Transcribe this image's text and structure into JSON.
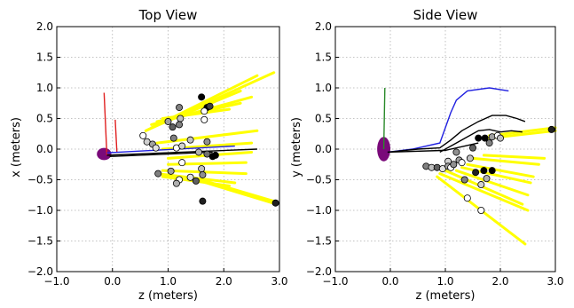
{
  "chart_data": [
    {
      "type": "scatter",
      "title": "Top View",
      "xlabel": "z (meters)",
      "ylabel": "x (meters)",
      "xlim": [
        -1.0,
        3.0
      ],
      "ylim": [
        -2.0,
        2.0
      ],
      "xticks": [
        "−1.0",
        "0.0",
        "1.0",
        "2.0",
        "3.0"
      ],
      "yticks": [
        "−2.0",
        "−1.5",
        "−1.0",
        "−0.5",
        "0.0",
        "0.5",
        "1.0",
        "1.5",
        "2.0"
      ],
      "xtick_values": [
        -1.0,
        0.0,
        1.0,
        2.0,
        3.0
      ],
      "ytick_values": [
        -2.0,
        -1.5,
        -1.0,
        -0.5,
        0.0,
        0.5,
        1.0,
        1.5,
        2.0
      ],
      "grid": true,
      "ellipse": {
        "center": [
          -0.15,
          -0.08
        ],
        "rx": 0.13,
        "ry": 0.1,
        "color": "#7a0a7a"
      },
      "lines": [
        {
          "color": "#e02020",
          "points": [
            [
              -0.15,
              0.92
            ],
            [
              -0.1,
              -0.1
            ]
          ]
        },
        {
          "color": "#e02020",
          "points": [
            [
              0.05,
              0.48
            ],
            [
              0.08,
              -0.05
            ]
          ]
        },
        {
          "color": "#2020e0",
          "points": [
            [
              -0.1,
              -0.06
            ],
            [
              2.2,
              0.05
            ]
          ]
        },
        {
          "color": "#000000",
          "points": [
            [
              -0.1,
              -0.1
            ],
            [
              2.6,
              0.0
            ]
          ]
        },
        {
          "color": "#000000",
          "points": [
            [
              -0.05,
              -0.12
            ],
            [
              1.8,
              -0.05
            ]
          ]
        }
      ],
      "rays": [
        {
          "from": [
            0.6,
            0.3
          ],
          "to": [
            2.6,
            1.2
          ]
        },
        {
          "from": [
            0.6,
            0.3
          ],
          "to": [
            2.9,
            1.25
          ]
        },
        {
          "from": [
            0.7,
            0.35
          ],
          "to": [
            2.3,
            0.95
          ]
        },
        {
          "from": [
            0.7,
            0.4
          ],
          "to": [
            2.5,
            0.85
          ]
        },
        {
          "from": [
            0.8,
            0.45
          ],
          "to": [
            2.3,
            0.75
          ]
        },
        {
          "from": [
            0.9,
            0.5
          ],
          "to": [
            2.1,
            0.65
          ]
        },
        {
          "from": [
            0.8,
            0.1
          ],
          "to": [
            2.6,
            0.3
          ]
        },
        {
          "from": [
            0.9,
            0.0
          ],
          "to": [
            2.5,
            0.1
          ]
        },
        {
          "from": [
            1.0,
            -0.15
          ],
          "to": [
            2.5,
            -0.05
          ]
        },
        {
          "from": [
            1.0,
            -0.25
          ],
          "to": [
            2.4,
            -0.22
          ]
        },
        {
          "from": [
            0.9,
            -0.35
          ],
          "to": [
            2.4,
            -0.4
          ]
        },
        {
          "from": [
            0.8,
            -0.4
          ],
          "to": [
            2.2,
            -0.55
          ]
        },
        {
          "from": [
            0.9,
            -0.45
          ],
          "to": [
            2.1,
            -0.6
          ]
        },
        {
          "from": [
            1.5,
            -0.5
          ],
          "to": [
            2.95,
            -0.9
          ]
        },
        {
          "from": [
            1.4,
            -0.45
          ],
          "to": [
            2.9,
            -0.85
          ]
        }
      ],
      "points": [
        {
          "x": 1.6,
          "y": 0.85,
          "shade": "#000000"
        },
        {
          "x": 1.2,
          "y": 0.68,
          "shade": "#808080"
        },
        {
          "x": 1.7,
          "y": 0.68,
          "shade": "#000000"
        },
        {
          "x": 1.75,
          "y": 0.7,
          "shade": "#404040"
        },
        {
          "x": 1.65,
          "y": 0.62,
          "shade": "#ffffff"
        },
        {
          "x": 1.22,
          "y": 0.5,
          "shade": "#c0c0c0"
        },
        {
          "x": 1.0,
          "y": 0.45,
          "shade": "#a0a0a0"
        },
        {
          "x": 1.08,
          "y": 0.36,
          "shade": "#606060"
        },
        {
          "x": 1.2,
          "y": 0.4,
          "shade": "#808080"
        },
        {
          "x": 1.65,
          "y": 0.48,
          "shade": "#ffffff"
        },
        {
          "x": 0.55,
          "y": 0.22,
          "shade": "#ffffff"
        },
        {
          "x": 0.62,
          "y": 0.12,
          "shade": "#d0d0d0"
        },
        {
          "x": 0.72,
          "y": 0.08,
          "shade": "#a0a0a0"
        },
        {
          "x": 0.78,
          "y": 0.02,
          "shade": "#e0e0e0"
        },
        {
          "x": 1.1,
          "y": 0.18,
          "shade": "#808080"
        },
        {
          "x": 1.4,
          "y": 0.15,
          "shade": "#c0c0c0"
        },
        {
          "x": 1.7,
          "y": 0.12,
          "shade": "#909090"
        },
        {
          "x": 1.15,
          "y": 0.02,
          "shade": "#ffffff"
        },
        {
          "x": 1.25,
          "y": 0.05,
          "shade": "#d0d0d0"
        },
        {
          "x": 1.55,
          "y": -0.05,
          "shade": "#b0b0b0"
        },
        {
          "x": 1.7,
          "y": -0.08,
          "shade": "#707070"
        },
        {
          "x": 1.8,
          "y": -0.12,
          "shade": "#000000"
        },
        {
          "x": 1.85,
          "y": -0.1,
          "shade": "#000000"
        },
        {
          "x": 1.25,
          "y": -0.22,
          "shade": "#ffffff"
        },
        {
          "x": 1.6,
          "y": -0.32,
          "shade": "#c0c0c0"
        },
        {
          "x": 1.05,
          "y": -0.36,
          "shade": "#a0a0a0"
        },
        {
          "x": 0.82,
          "y": -0.4,
          "shade": "#808080"
        },
        {
          "x": 1.4,
          "y": -0.46,
          "shade": "#e0e0e0"
        },
        {
          "x": 1.62,
          "y": -0.42,
          "shade": "#909090"
        },
        {
          "x": 1.5,
          "y": -0.52,
          "shade": "#606060"
        },
        {
          "x": 1.2,
          "y": -0.5,
          "shade": "#ffffff"
        },
        {
          "x": 1.15,
          "y": -0.56,
          "shade": "#b0b0b0"
        },
        {
          "x": 1.62,
          "y": -0.85,
          "shade": "#202020"
        },
        {
          "x": 2.93,
          "y": -0.88,
          "shade": "#202020"
        }
      ]
    },
    {
      "type": "scatter",
      "title": "Side View",
      "xlabel": "z (meters)",
      "ylabel": "y (meters)",
      "xlim": [
        -1.0,
        3.0
      ],
      "ylim": [
        -2.0,
        2.0
      ],
      "xticks": [
        "−1.0",
        "0.0",
        "1.0",
        "2.0",
        "3.0"
      ],
      "yticks": [
        "−2.0",
        "−1.5",
        "−1.0",
        "−0.5",
        "0.0",
        "0.5",
        "1.0",
        "1.5",
        "2.0"
      ],
      "xtick_values": [
        -1.0,
        0.0,
        1.0,
        2.0,
        3.0
      ],
      "ytick_values": [
        -2.0,
        -1.5,
        -1.0,
        -0.5,
        0.0,
        0.5,
        1.0,
        1.5,
        2.0
      ],
      "grid": true,
      "ellipse": {
        "center": [
          -0.12,
          0.0
        ],
        "rx": 0.12,
        "ry": 0.2,
        "color": "#7a0a7a"
      },
      "lines": [
        {
          "color": "#2a8a2a",
          "points": [
            [
              -0.1,
              1.0
            ],
            [
              -0.12,
              0.0
            ]
          ]
        },
        {
          "color": "#2020e0",
          "points": [
            [
              -0.05,
              -0.05
            ],
            [
              0.4,
              0.0
            ],
            [
              0.9,
              0.1
            ],
            [
              1.0,
              0.35
            ],
            [
              1.1,
              0.6
            ],
            [
              1.2,
              0.8
            ],
            [
              1.4,
              0.95
            ],
            [
              1.8,
              1.0
            ],
            [
              2.15,
              0.95
            ]
          ]
        },
        {
          "color": "#000000",
          "points": [
            [
              -0.05,
              -0.05
            ],
            [
              0.5,
              0.0
            ],
            [
              0.9,
              0.02
            ],
            [
              1.1,
              0.15
            ],
            [
              1.3,
              0.3
            ],
            [
              1.6,
              0.45
            ],
            [
              1.85,
              0.55
            ],
            [
              2.1,
              0.55
            ],
            [
              2.3,
              0.5
            ],
            [
              2.45,
              0.45
            ]
          ]
        },
        {
          "color": "#000000",
          "points": [
            [
              0.9,
              -0.05
            ],
            [
              1.3,
              0.15
            ],
            [
              1.6,
              0.3
            ],
            [
              1.8,
              0.32
            ],
            [
              2.0,
              0.28
            ],
            [
              2.2,
              0.3
            ],
            [
              2.4,
              0.28
            ]
          ]
        },
        {
          "color": "#000000",
          "points": [
            [
              -0.05,
              -0.05
            ],
            [
              1.0,
              -0.02
            ],
            [
              1.35,
              0.05
            ],
            [
              1.6,
              0.1
            ]
          ]
        }
      ],
      "rays": [
        {
          "from": [
            1.8,
            0.22
          ],
          "to": [
            3.0,
            0.35
          ]
        },
        {
          "from": [
            1.8,
            0.18
          ],
          "to": [
            3.0,
            0.3
          ]
        },
        {
          "from": [
            1.7,
            -0.1
          ],
          "to": [
            2.8,
            -0.15
          ]
        },
        {
          "from": [
            1.5,
            -0.15
          ],
          "to": [
            2.7,
            -0.25
          ]
        },
        {
          "from": [
            1.4,
            -0.25
          ],
          "to": [
            2.6,
            -0.45
          ]
        },
        {
          "from": [
            1.3,
            -0.3
          ],
          "to": [
            2.55,
            -0.55
          ]
        },
        {
          "from": [
            1.2,
            -0.35
          ],
          "to": [
            2.5,
            -0.75
          ]
        },
        {
          "from": [
            1.0,
            -0.35
          ],
          "to": [
            2.4,
            -0.9
          ]
        },
        {
          "from": [
            0.9,
            -0.4
          ],
          "to": [
            2.5,
            -1.0
          ]
        },
        {
          "from": [
            0.85,
            -0.45
          ],
          "to": [
            2.45,
            -1.55
          ]
        }
      ],
      "points": [
        {
          "x": 2.93,
          "y": 0.32,
          "shade": "#202020"
        },
        {
          "x": 1.6,
          "y": 0.18,
          "shade": "#000000"
        },
        {
          "x": 1.72,
          "y": 0.18,
          "shade": "#000000"
        },
        {
          "x": 1.85,
          "y": 0.2,
          "shade": "#a0a0a0"
        },
        {
          "x": 1.95,
          "y": 0.22,
          "shade": "#ffffff"
        },
        {
          "x": 2.0,
          "y": 0.18,
          "shade": "#c0c0c0"
        },
        {
          "x": 1.8,
          "y": 0.1,
          "shade": "#808080"
        },
        {
          "x": 1.5,
          "y": 0.02,
          "shade": "#606060"
        },
        {
          "x": 1.2,
          "y": -0.05,
          "shade": "#909090"
        },
        {
          "x": 1.05,
          "y": -0.2,
          "shade": "#d0d0d0"
        },
        {
          "x": 1.25,
          "y": -0.18,
          "shade": "#a0a0a0"
        },
        {
          "x": 1.3,
          "y": -0.22,
          "shade": "#ffffff"
        },
        {
          "x": 1.45,
          "y": -0.15,
          "shade": "#c0c0c0"
        },
        {
          "x": 0.65,
          "y": -0.28,
          "shade": "#808080"
        },
        {
          "x": 0.75,
          "y": -0.3,
          "shade": "#c0c0c0"
        },
        {
          "x": 0.85,
          "y": -0.3,
          "shade": "#606060"
        },
        {
          "x": 0.95,
          "y": -0.32,
          "shade": "#e0e0e0"
        },
        {
          "x": 1.05,
          "y": -0.28,
          "shade": "#a0a0a0"
        },
        {
          "x": 1.1,
          "y": -0.3,
          "shade": "#ffffff"
        },
        {
          "x": 1.15,
          "y": -0.25,
          "shade": "#909090"
        },
        {
          "x": 1.55,
          "y": -0.38,
          "shade": "#202020"
        },
        {
          "x": 1.7,
          "y": -0.35,
          "shade": "#000000"
        },
        {
          "x": 1.85,
          "y": -0.35,
          "shade": "#000000"
        },
        {
          "x": 1.75,
          "y": -0.48,
          "shade": "#b0b0b0"
        },
        {
          "x": 1.35,
          "y": -0.5,
          "shade": "#808080"
        },
        {
          "x": 1.65,
          "y": -0.58,
          "shade": "#d0d0d0"
        },
        {
          "x": 1.4,
          "y": -0.8,
          "shade": "#ffffff"
        },
        {
          "x": 1.65,
          "y": -1.0,
          "shade": "#ffffff"
        }
      ]
    }
  ]
}
